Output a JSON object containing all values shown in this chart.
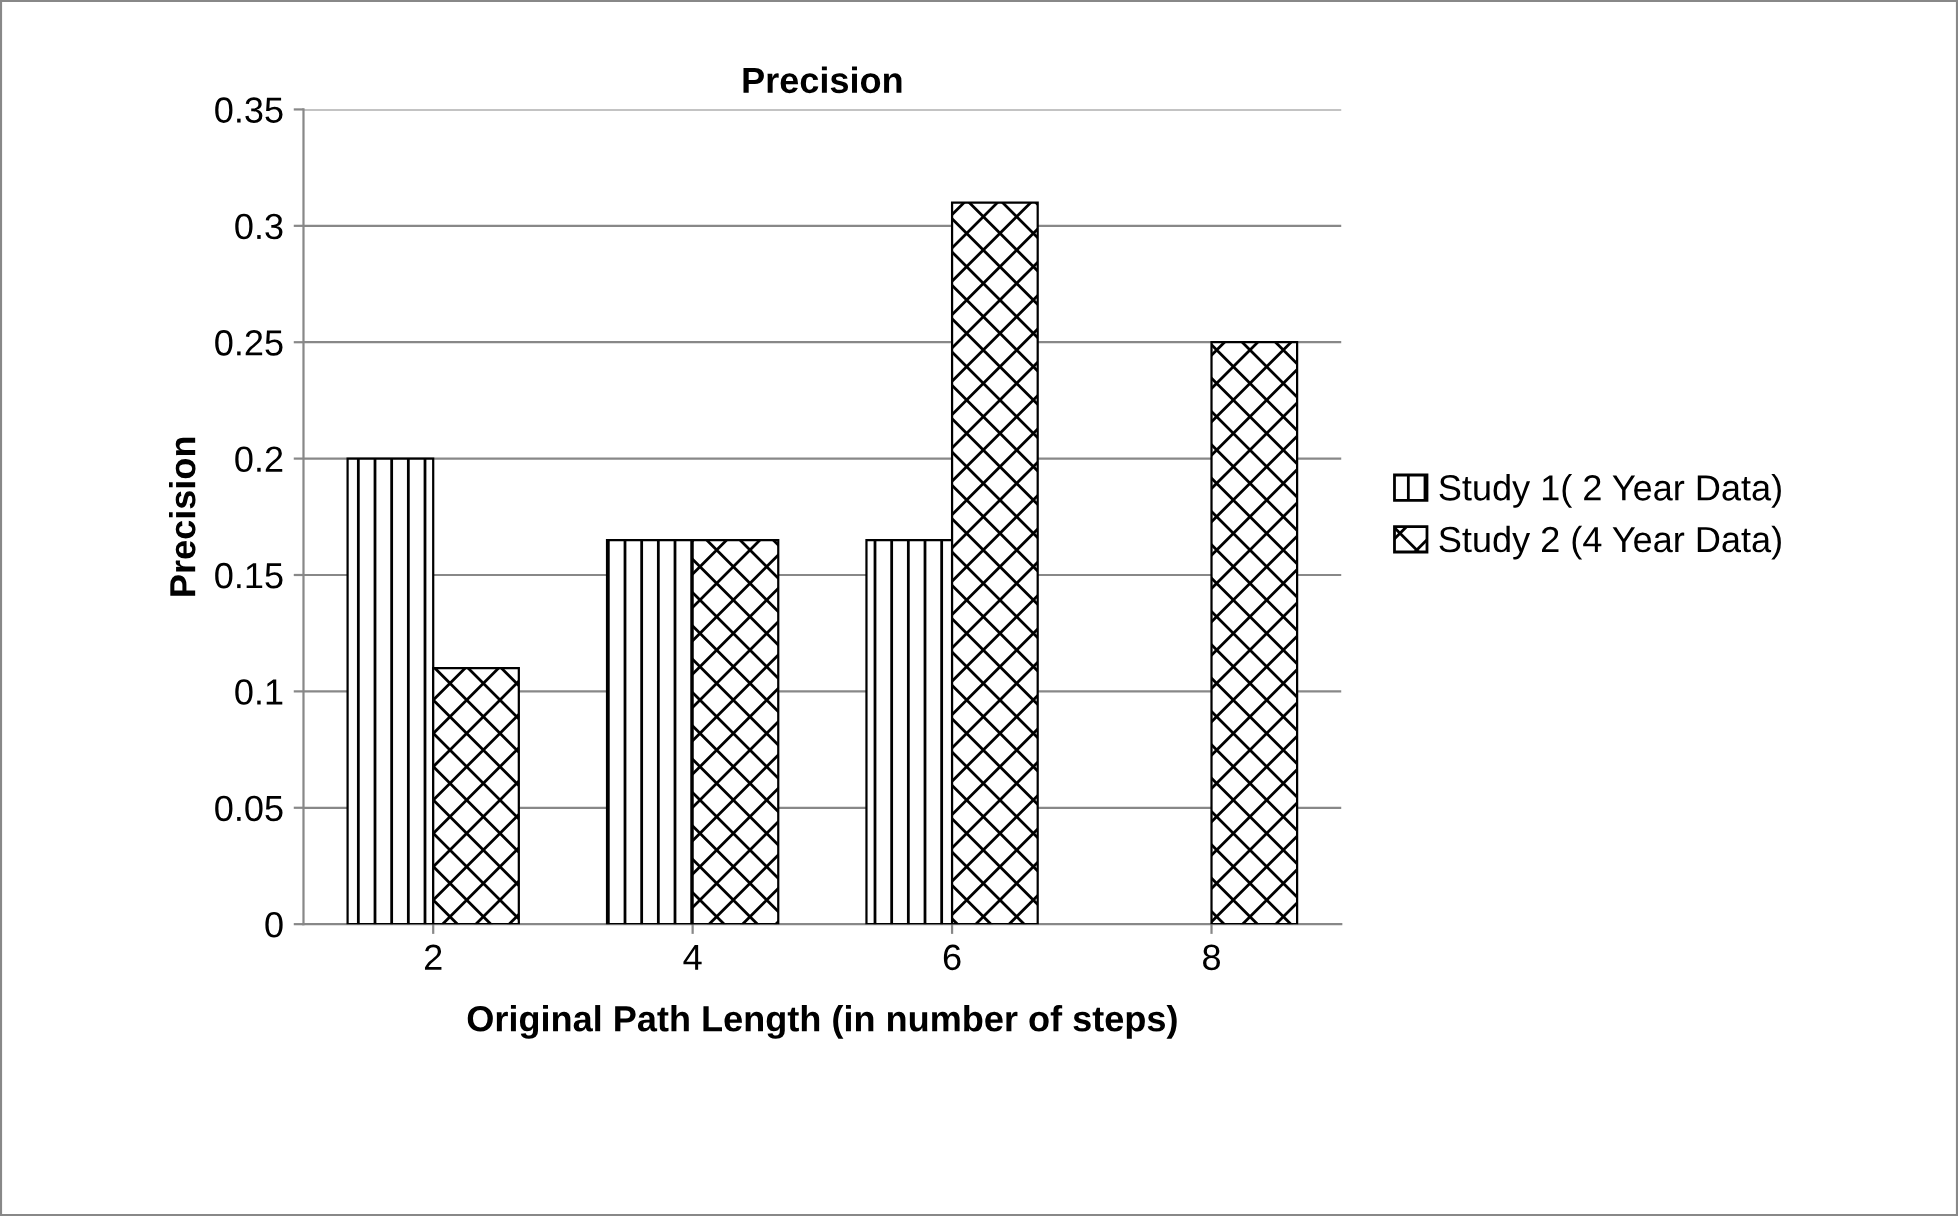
{
  "chart_data": {
    "type": "bar",
    "title": "Precision",
    "xlabel": "Original Path Length (in number of steps)",
    "ylabel": "Precision",
    "categories": [
      "2",
      "4",
      "6",
      "8"
    ],
    "series": [
      {
        "name": "Study 1( 2 Year Data)",
        "color": "#000000",
        "values": [
          0.2,
          0.165,
          0.165,
          null
        ]
      },
      {
        "name": "Study 2 (4 Year Data)",
        "color": "#000000",
        "values": [
          0.11,
          0.165,
          0.31,
          0.25
        ]
      }
    ],
    "ylim": [
      0,
      0.35
    ],
    "yticks": [
      0,
      0.05,
      0.1,
      0.15,
      0.2,
      0.25,
      0.3,
      0.35
    ],
    "grid": "y",
    "legend": "right"
  }
}
